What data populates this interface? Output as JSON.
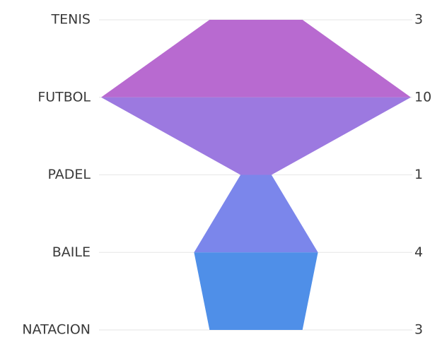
{
  "chart_data": {
    "type": "funnel",
    "categories": [
      "TENIS",
      "FUTBOL",
      "PADEL",
      "BAILE",
      "NATACION"
    ],
    "values": [
      3,
      10,
      1,
      4,
      3
    ],
    "colors": [
      "#b86ad0",
      "#9c79e0",
      "#7b86eb",
      "#4f8fe8"
    ],
    "grid": true
  }
}
